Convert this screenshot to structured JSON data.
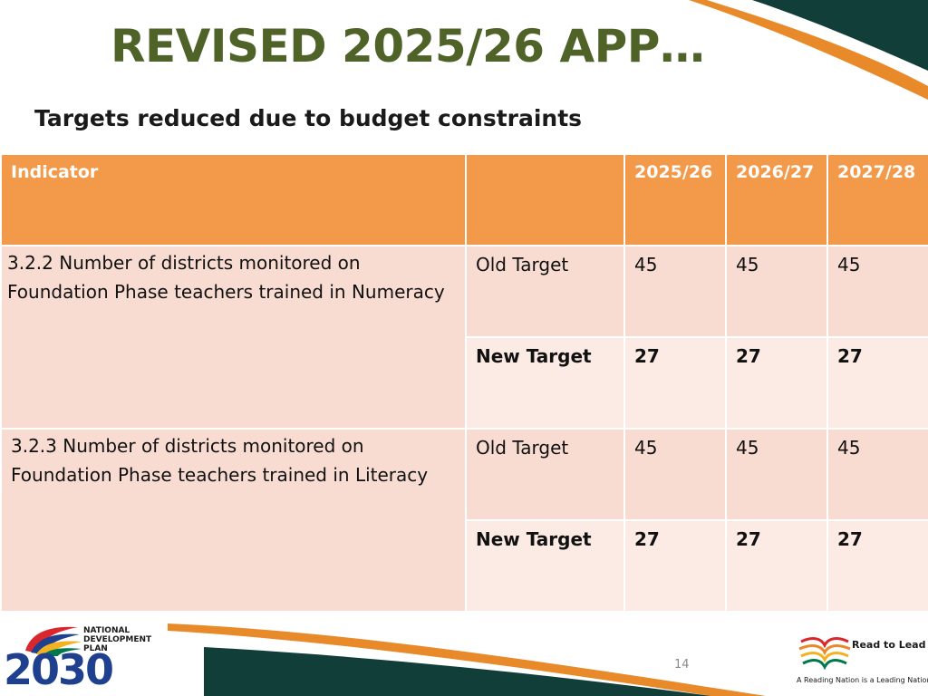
{
  "slide": {
    "title": "REVISED 2025/26 APP…",
    "subtitle": "Targets reduced due to budget constraints",
    "page_number": "14"
  },
  "table": {
    "headers": [
      "Indicator",
      "",
      "2025/26",
      "2026/27",
      "2027/28"
    ],
    "indicators": [
      {
        "name": "3.2.2 Number of districts monitored on Foundation Phase teachers trained in Numeracy",
        "rows": [
          {
            "label": "Old Target",
            "values": [
              "45",
              "45",
              "45"
            ]
          },
          {
            "label": "New Target",
            "values": [
              "27",
              "27",
              "27"
            ]
          }
        ]
      },
      {
        "name": "3.2.3 Number of districts monitored on Foundation Phase teachers trained in Literacy",
        "rows": [
          {
            "label": "Old Target",
            "values": [
              "45",
              "45",
              "45"
            ]
          },
          {
            "label": "New Target",
            "values": [
              "27",
              "27",
              "27"
            ]
          }
        ]
      }
    ]
  },
  "logos": {
    "ndp_text": "NATIONAL DEVELOPMENT PLAN",
    "ndp_year": "2030",
    "rtl_title": "Read to Lead",
    "rtl_tagline": "A Reading Nation is a Leading Nation"
  },
  "colors": {
    "title": "#4f6228",
    "header_bg": "#f39a4a",
    "old_row_bg": "#f8dcd2",
    "new_row_bg": "#fceae4",
    "swoosh_orange": "#e8892a",
    "swoosh_dark": "#123e3a"
  }
}
